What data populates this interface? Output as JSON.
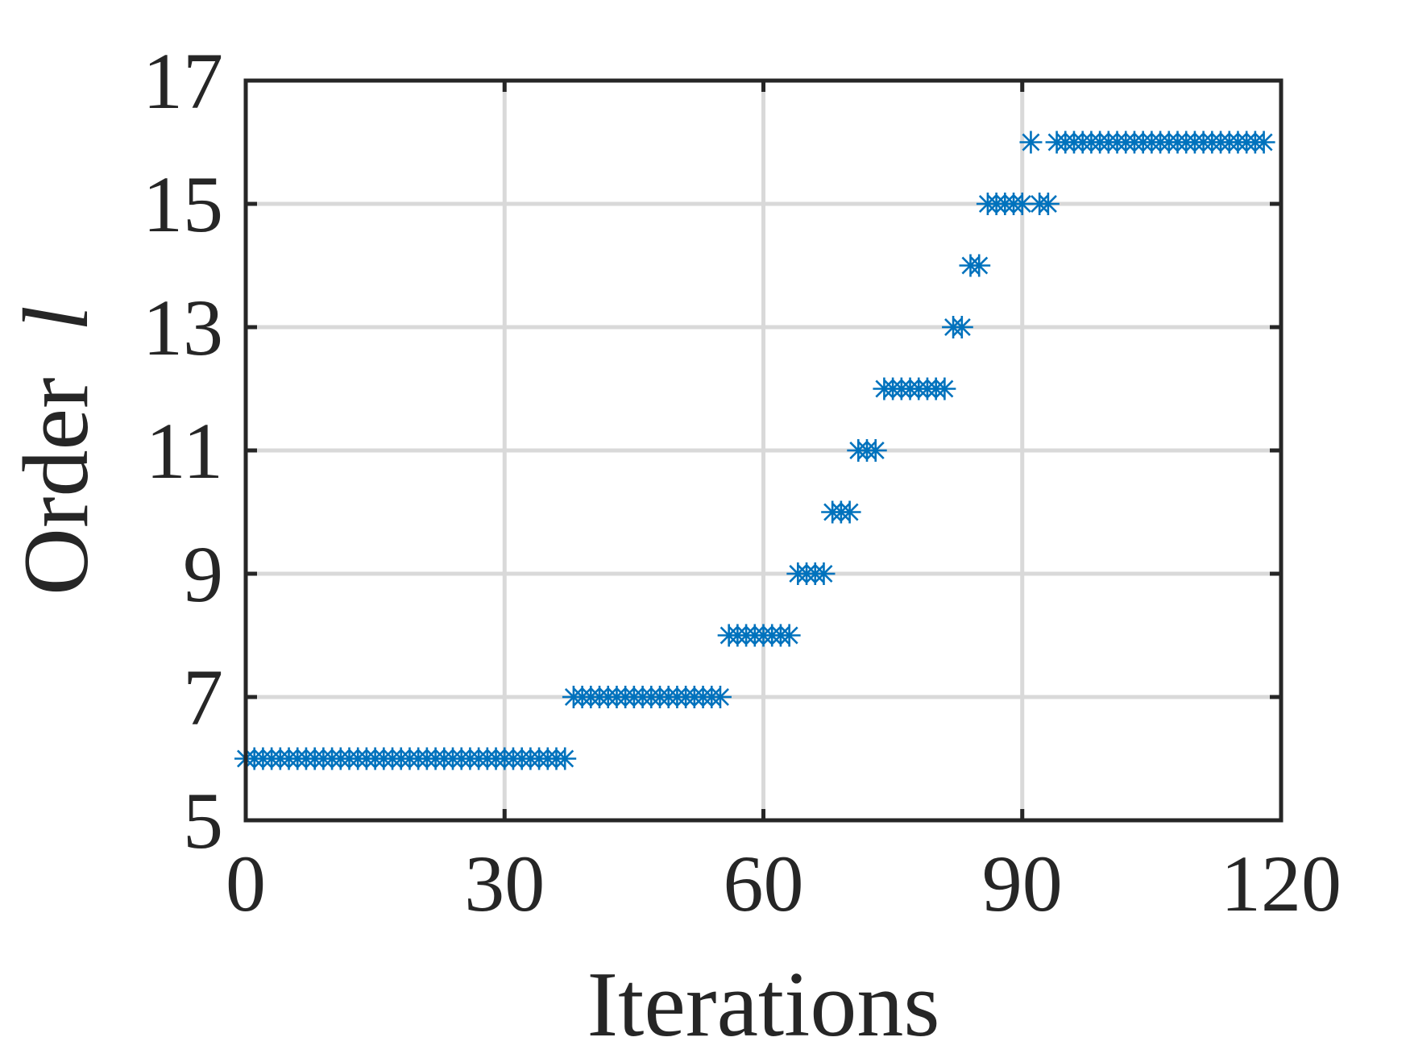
{
  "chart_data": {
    "type": "scatter",
    "xlabel": "Iterations",
    "ylabel": "Order",
    "ylabel_var": "l",
    "xlim": [
      0,
      120
    ],
    "ylim": [
      5,
      17
    ],
    "xticks": [
      "0",
      "30",
      "60",
      "90",
      "120"
    ],
    "yticks": [
      "5",
      "7",
      "9",
      "11",
      "13",
      "15",
      "17"
    ],
    "grid": true,
    "marker": "asterisk",
    "color": "#0072BD",
    "series": [
      {
        "x": [
          0,
          1,
          2,
          3,
          4,
          5,
          6,
          7,
          8,
          9,
          10,
          11,
          12,
          13,
          14,
          15,
          16,
          17,
          18,
          19,
          20,
          21,
          22,
          23,
          24,
          25,
          26,
          27,
          28,
          29,
          30,
          31,
          32,
          33,
          34,
          35,
          36,
          37,
          38,
          39,
          40,
          41,
          42,
          43,
          44,
          45,
          46,
          47,
          48,
          49,
          50,
          51,
          52,
          53,
          54,
          55,
          56,
          57,
          58,
          59,
          60,
          61,
          62,
          63,
          64,
          65,
          66,
          67,
          68,
          69,
          70,
          71,
          72,
          73,
          74,
          75,
          76,
          77,
          78,
          79,
          80,
          81,
          82,
          83,
          84,
          85,
          86,
          87,
          88,
          89,
          90,
          92,
          93,
          91,
          94,
          95,
          96,
          97,
          98,
          99,
          100,
          101,
          102,
          103,
          104,
          105,
          106,
          107,
          108,
          109,
          110,
          111,
          112,
          113,
          114,
          115,
          116,
          117,
          118
        ],
        "y": [
          6,
          6,
          6,
          6,
          6,
          6,
          6,
          6,
          6,
          6,
          6,
          6,
          6,
          6,
          6,
          6,
          6,
          6,
          6,
          6,
          6,
          6,
          6,
          6,
          6,
          6,
          6,
          6,
          6,
          6,
          6,
          6,
          6,
          6,
          6,
          6,
          6,
          6,
          7,
          7,
          7,
          7,
          7,
          7,
          7,
          7,
          7,
          7,
          7,
          7,
          7,
          7,
          7,
          7,
          7,
          7,
          8,
          8,
          8,
          8,
          8,
          8,
          8,
          8,
          9,
          9,
          9,
          9,
          10,
          10,
          10,
          11,
          11,
          11,
          12,
          12,
          12,
          12,
          12,
          12,
          12,
          12,
          13,
          13,
          14,
          14,
          15,
          15,
          15,
          15,
          15,
          15,
          15,
          16,
          16,
          16,
          16,
          16,
          16,
          16,
          16,
          16,
          16,
          16,
          16,
          16,
          16,
          16,
          16,
          16,
          16,
          16,
          16,
          16,
          16,
          16,
          16,
          16,
          16
        ]
      }
    ]
  }
}
